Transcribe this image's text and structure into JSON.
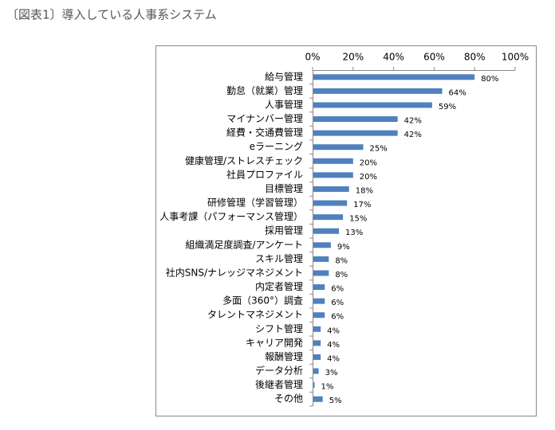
{
  "chart_data": {
    "type": "bar",
    "orientation": "horizontal",
    "title": "〔図表1〕導入している人事系システム",
    "categories": [
      "給与管理",
      "勤怠（就業）管理",
      "人事管理",
      "マイナンバー管理",
      "経費・交通費管理",
      "eラーニング",
      "健康管理/ストレスチェック",
      "社員プロファイル",
      "目標管理",
      "研修管理（学習管理）",
      "人事考課（パフォーマンス管理）",
      "採用管理",
      "組織満足度調査/アンケート",
      "スキル管理",
      "社内SNS/ナレッジマネジメント",
      "内定者管理",
      "多面（360°）調査",
      "タレントマネジメント",
      "シフト管理",
      "キャリア開発",
      "報酬管理",
      "データ分析",
      "後継者管理",
      "その他"
    ],
    "values": [
      80,
      64,
      59,
      42,
      42,
      25,
      20,
      20,
      18,
      17,
      15,
      13,
      9,
      8,
      8,
      6,
      6,
      6,
      4,
      4,
      4,
      3,
      1,
      5
    ],
    "value_labels": [
      "80%",
      "64%",
      "59%",
      "42%",
      "42%",
      "25%",
      "20%",
      "20%",
      "18%",
      "17%",
      "15%",
      "13%",
      "9%",
      "8%",
      "8%",
      "6%",
      "6%",
      "6%",
      "4%",
      "4%",
      "4%",
      "3%",
      "1%",
      "5%"
    ],
    "color": "#4f81bd",
    "xlim": [
      0,
      100
    ],
    "xticks": [
      {
        "value": 0,
        "label": "0%"
      },
      {
        "value": 20,
        "label": "20%"
      },
      {
        "value": 40,
        "label": "40%"
      },
      {
        "value": 60,
        "label": "60%"
      },
      {
        "value": 80,
        "label": "80%"
      },
      {
        "value": 100,
        "label": "100%"
      }
    ]
  }
}
